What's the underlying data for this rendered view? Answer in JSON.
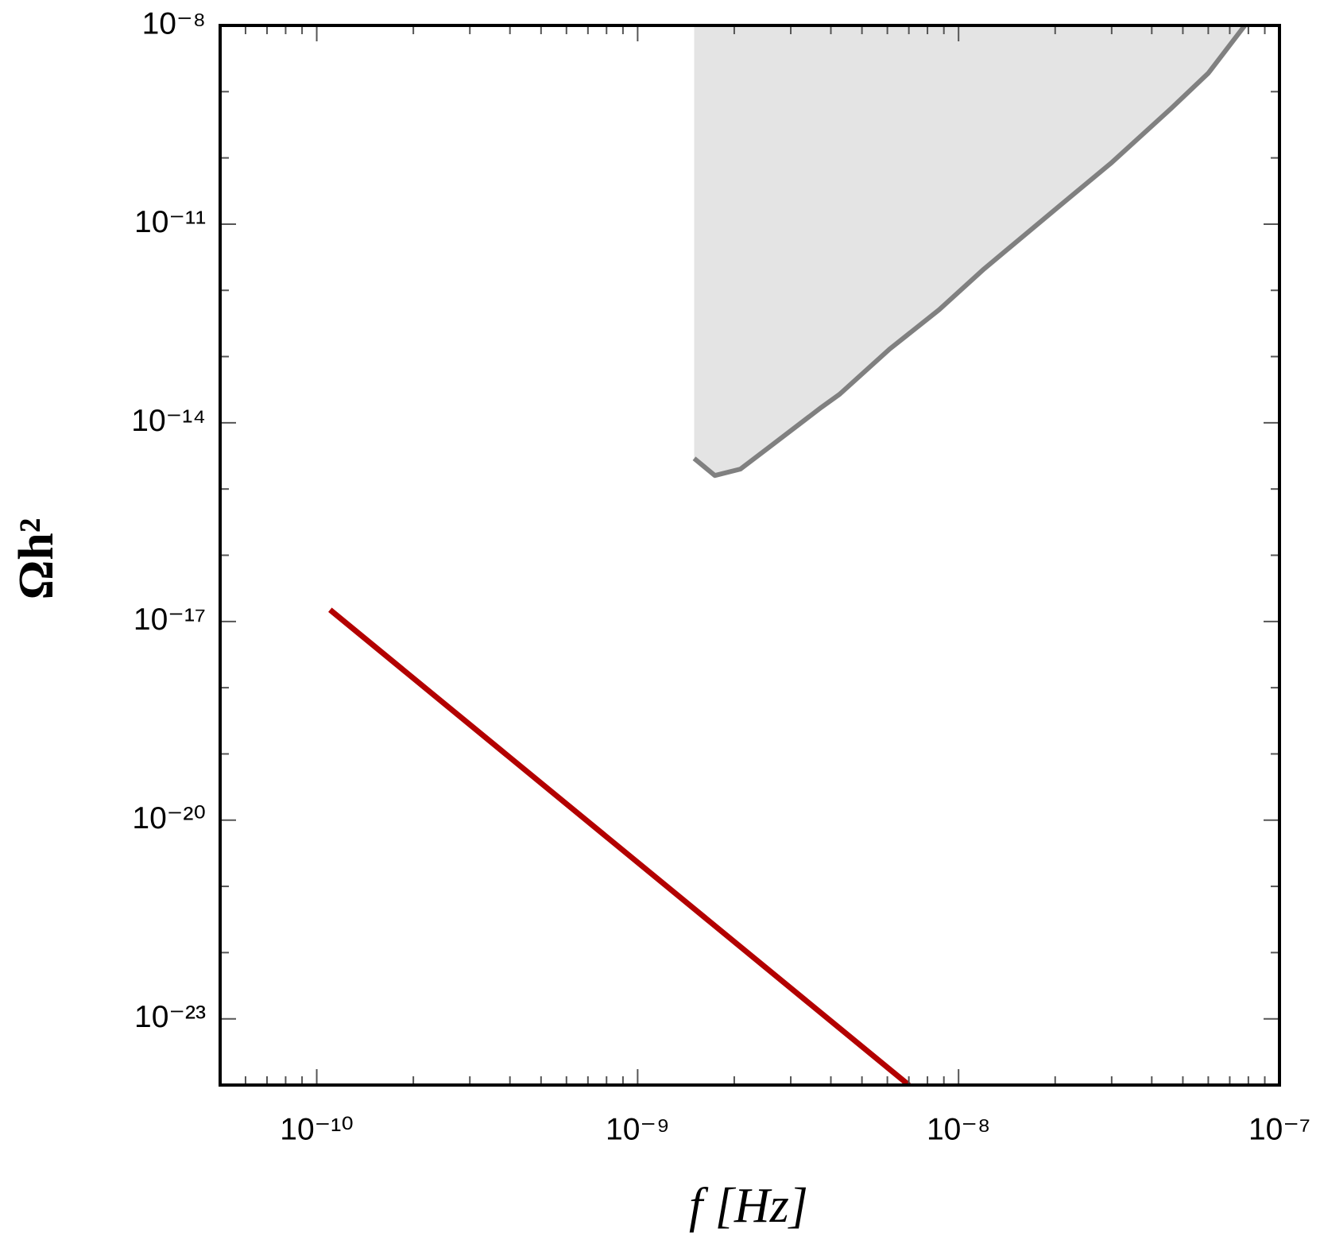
{
  "chart_data": {
    "type": "line",
    "xlabel": "f [Hz]",
    "ylabel": "Ωh²",
    "xscale": "log",
    "yscale": "log",
    "xlim": [
      5e-11,
      1e-07
    ],
    "ylim": [
      1e-24,
      1e-08
    ],
    "xticks": [
      {
        "value": 1e-10,
        "label": "10⁻¹⁰"
      },
      {
        "value": 1e-09,
        "label": "10⁻⁹"
      },
      {
        "value": 1e-08,
        "label": "10⁻⁸"
      },
      {
        "value": 1e-07,
        "label": "10⁻⁷"
      }
    ],
    "yticks": [
      {
        "value": 1e-23,
        "label": "10⁻²³"
      },
      {
        "value": 1e-20,
        "label": "10⁻²⁰"
      },
      {
        "value": 1e-17,
        "label": "10⁻¹⁷"
      },
      {
        "value": 1e-14,
        "label": "10⁻¹⁴"
      },
      {
        "value": 1e-11,
        "label": "10⁻¹¹"
      },
      {
        "value": 1e-08,
        "label": "10⁻⁸"
      }
    ],
    "xminorticks": [
      6e-11,
      7e-11,
      8e-11,
      9e-11,
      2e-10,
      3e-10,
      4e-10,
      5e-10,
      6e-10,
      7e-10,
      8e-10,
      9e-10,
      2e-09,
      3e-09,
      4e-09,
      5e-09,
      6e-09,
      7e-09,
      8e-09,
      9e-09,
      2e-08,
      3e-08,
      4e-08,
      5e-08,
      6e-08,
      7e-08,
      8e-08,
      9e-08
    ],
    "yminorticks": [
      1e-22,
      1e-21,
      1e-19,
      1e-18,
      1e-16,
      1e-15,
      1e-13,
      1e-12,
      1e-10,
      1e-09
    ],
    "series": [
      {
        "color": "#808080",
        "fill": "#e4e4e4",
        "x": [
          1.5e-09,
          1.74e-09,
          2.09e-09,
          2.54e-09,
          3.73e-09,
          4.26e-09,
          6.1e-09,
          8.7e-09,
          1.2e-08,
          1.95e-08,
          3e-08,
          4.6e-08,
          6e-08,
          7.8e-08
        ],
        "values": [
          2.9e-15,
          1.6e-15,
          2e-15,
          4.1e-15,
          1.7e-14,
          2.7e-14,
          1.3e-13,
          5.1e-13,
          2.1e-12,
          1.5e-11,
          8.5e-11,
          5.6e-10,
          1.9e-09,
          1e-08
        ]
      },
      {
        "color": "#b30000",
        "x": [
          1.1e-10,
          7e-09
        ],
        "values": [
          1.5e-17,
          1e-24
        ]
      }
    ]
  }
}
